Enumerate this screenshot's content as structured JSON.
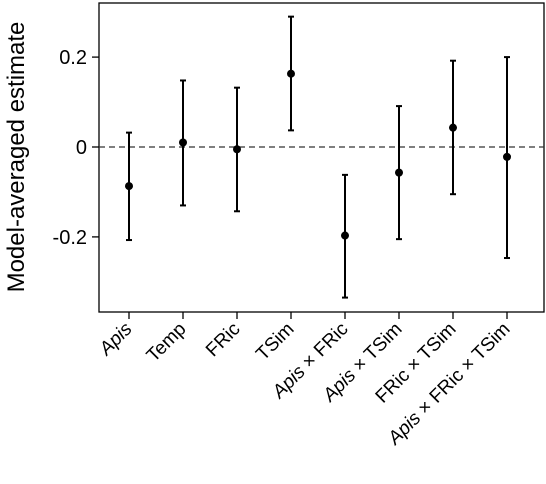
{
  "chart_data": {
    "type": "scatter",
    "subtype": "point-estimate-with-error-bars",
    "title": "",
    "xlabel": "",
    "ylabel": "Model-averaged estimate",
    "ylim": [
      -0.36,
      0.325
    ],
    "yticks": [
      {
        "value": 0.2,
        "label": "0.2"
      },
      {
        "value": 0,
        "label": "0"
      },
      {
        "value": -0.2,
        "label": "-0.2"
      }
    ],
    "reference_line": {
      "y": 0,
      "style": "dashed"
    },
    "grid": false,
    "categories": [
      {
        "parts": [
          {
            "text": "Apis",
            "italic": true
          }
        ]
      },
      {
        "parts": [
          {
            "text": "Temp",
            "italic": false
          }
        ]
      },
      {
        "parts": [
          {
            "text": "FRic",
            "italic": false
          }
        ]
      },
      {
        "parts": [
          {
            "text": "TSim",
            "italic": false
          }
        ]
      },
      {
        "parts": [
          {
            "text": "Apis",
            "italic": true
          },
          {
            "text": " × FRic",
            "italic": false
          }
        ]
      },
      {
        "parts": [
          {
            "text": "Apis",
            "italic": true
          },
          {
            "text": " × TSim",
            "italic": false
          }
        ]
      },
      {
        "parts": [
          {
            "text": "FRic × TSim",
            "italic": false
          }
        ]
      },
      {
        "parts": [
          {
            "text": "Apis",
            "italic": true
          },
          {
            "text": " × FRic × TSim",
            "italic": false
          }
        ]
      }
    ],
    "series": [
      {
        "estimates": [
          -0.087,
          0.01,
          -0.005,
          0.163,
          -0.197,
          -0.057,
          0.043,
          -0.022
        ],
        "lower": [
          -0.207,
          -0.13,
          -0.143,
          0.037,
          -0.335,
          -0.205,
          -0.105,
          -0.247
        ],
        "upper": [
          0.032,
          0.148,
          0.132,
          0.29,
          -0.062,
          0.091,
          0.192,
          0.2
        ]
      }
    ],
    "colors": {
      "marker": "#000000",
      "frame": "#000000",
      "reference": "#333333"
    }
  }
}
